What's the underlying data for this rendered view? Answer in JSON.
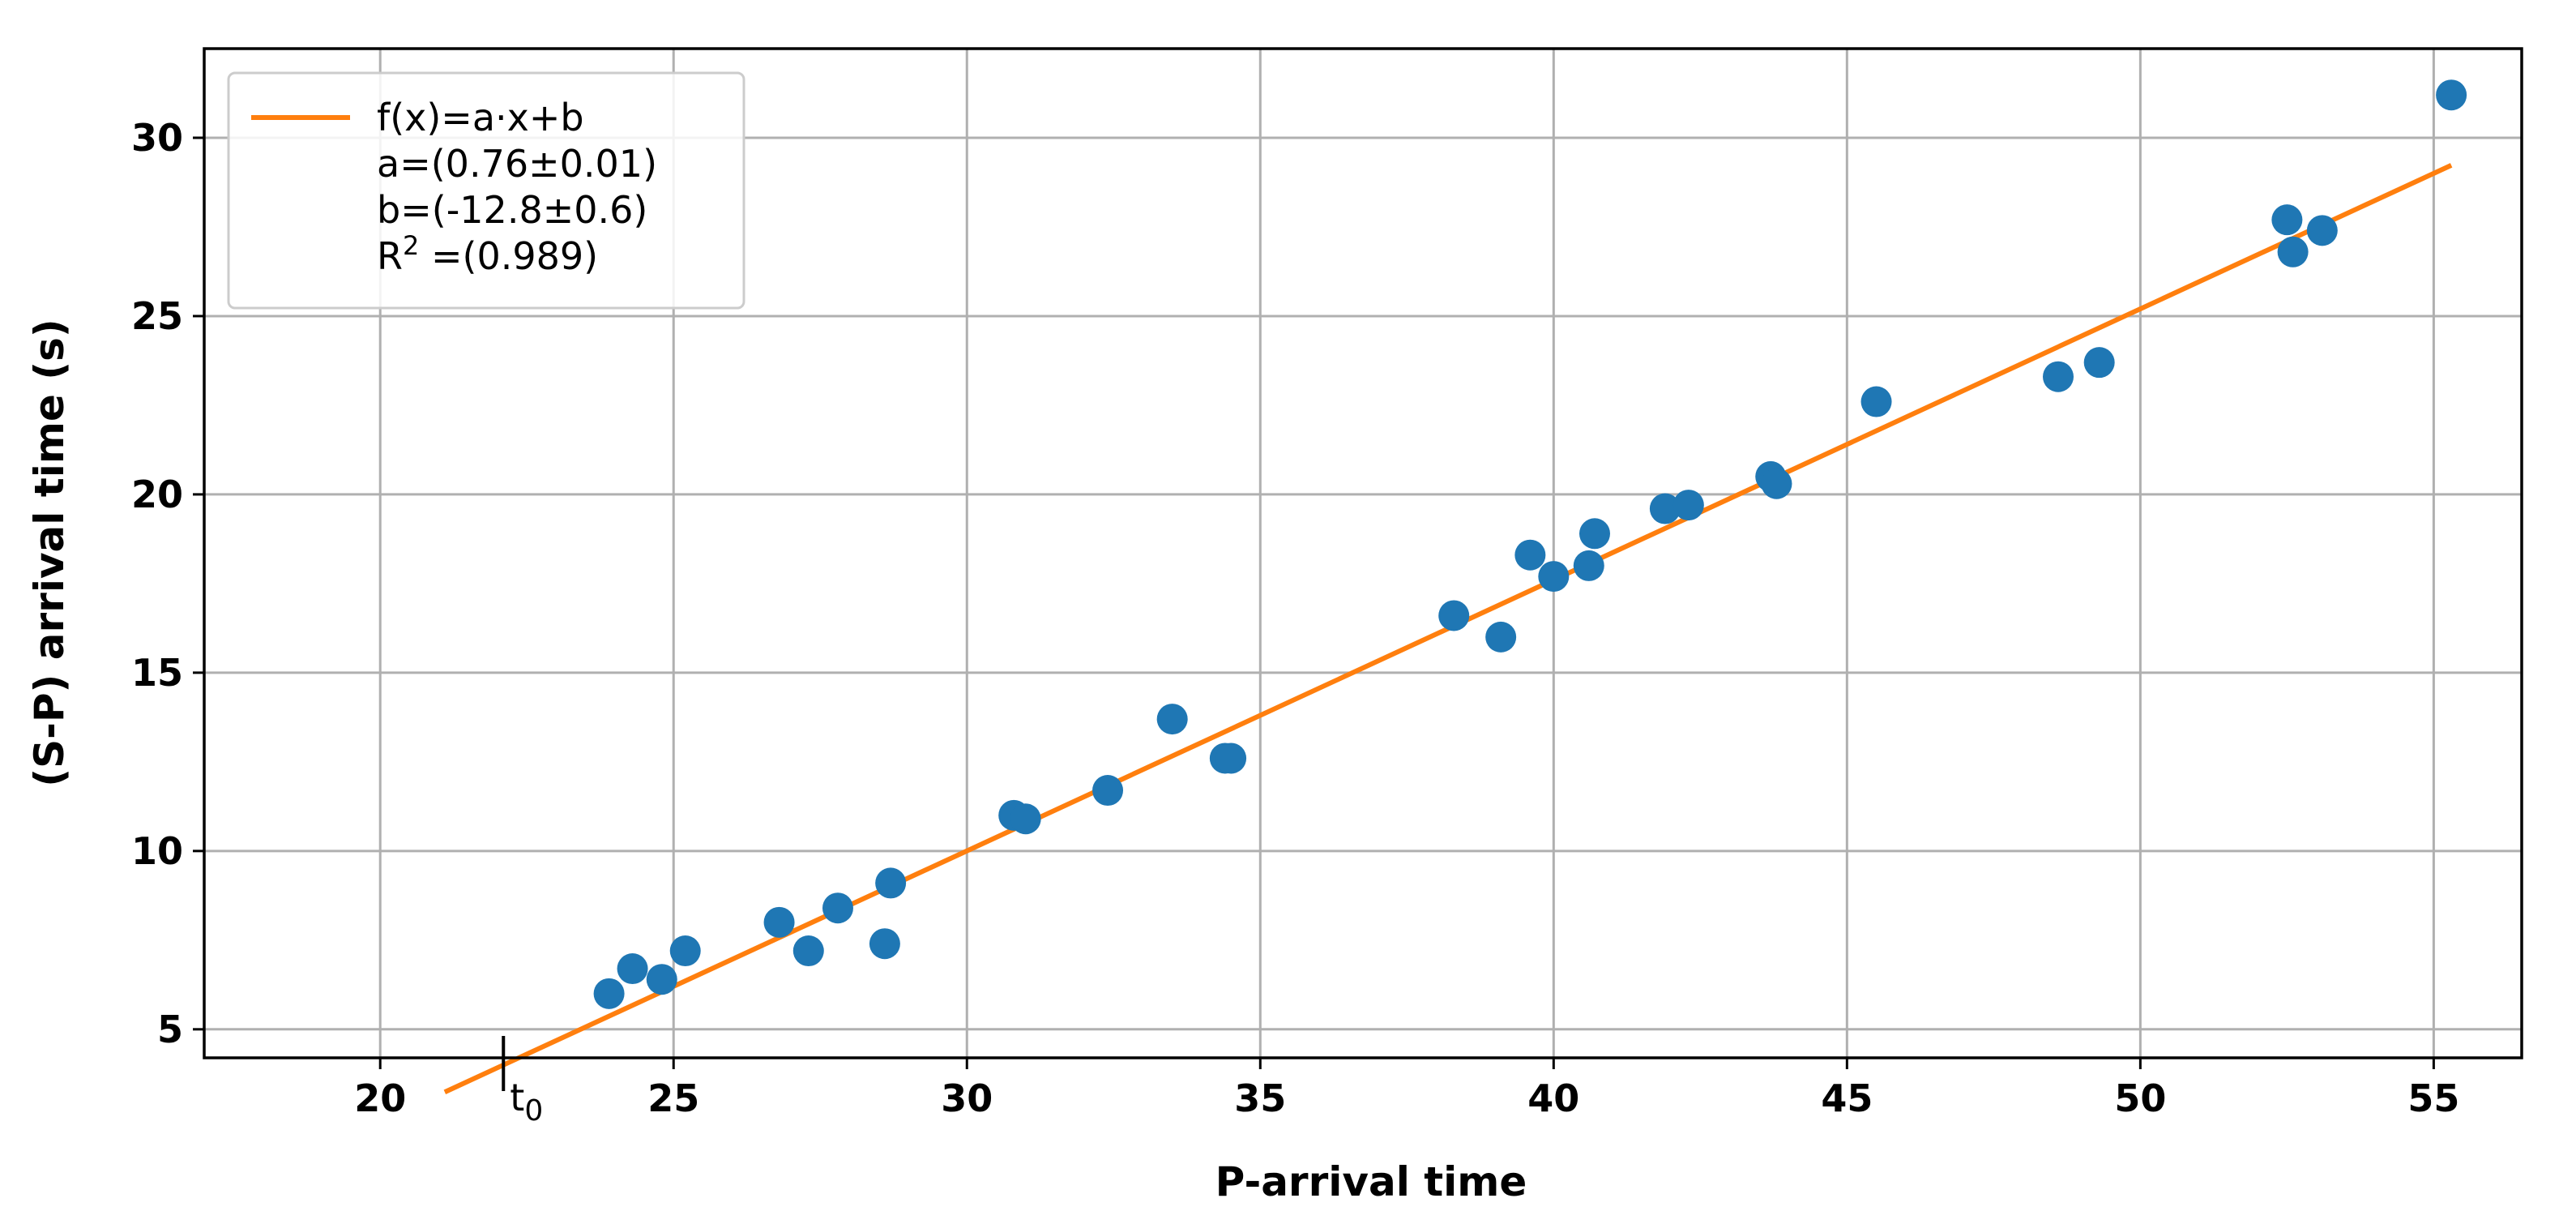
{
  "chart_data": {
    "type": "scatter",
    "xlabel": "P-arrival time",
    "ylabel": "(S-P) arrival time (s)",
    "xlim": [
      17,
      56.5
    ],
    "ylim": [
      4.2,
      32.5
    ],
    "xticks": [
      20,
      25,
      30,
      35,
      40,
      45,
      50,
      55
    ],
    "yticks": [
      5,
      10,
      15,
      20,
      25,
      30
    ],
    "grid": true,
    "legend_position": "top-left",
    "colors": {
      "points": "#1f77b4",
      "fit": "#ff7f0e"
    },
    "series": [
      {
        "kind": "points",
        "x": [
          23.9,
          24.3,
          24.8,
          25.2,
          26.8,
          27.3,
          27.8,
          28.6,
          28.7,
          30.8,
          31.0,
          32.4,
          33.5,
          34.4,
          34.5,
          38.3,
          39.1,
          39.6,
          40.0,
          40.6,
          40.7,
          41.9,
          42.3,
          43.7,
          43.8,
          45.5,
          48.6,
          49.3,
          52.5,
          52.6,
          53.1,
          55.3
        ],
        "y": [
          6.0,
          6.7,
          6.4,
          7.2,
          8.0,
          7.2,
          8.4,
          7.4,
          9.1,
          11.0,
          10.9,
          11.7,
          13.7,
          12.6,
          12.6,
          16.6,
          16.0,
          18.3,
          17.7,
          18.0,
          18.9,
          19.6,
          19.7,
          20.5,
          20.3,
          22.6,
          23.3,
          23.7,
          27.7,
          26.8,
          27.4,
          31.2
        ]
      },
      {
        "kind": "fit",
        "name": "f(x)=a·x+b",
        "x": [
          21.1,
          55.3
        ],
        "y": [
          3.24,
          29.23
        ]
      }
    ],
    "legend": {
      "entry": "f(x)=a·x+b",
      "lines": [
        "a=(0.76±0.01)",
        "b=(-12.8±0.6)"
      ],
      "r2_prefix": "R",
      "r2_sup": "2",
      "r2_value": " =(0.989)"
    },
    "annotation": {
      "x": 22.1,
      "label": "t",
      "sub": "0"
    }
  }
}
